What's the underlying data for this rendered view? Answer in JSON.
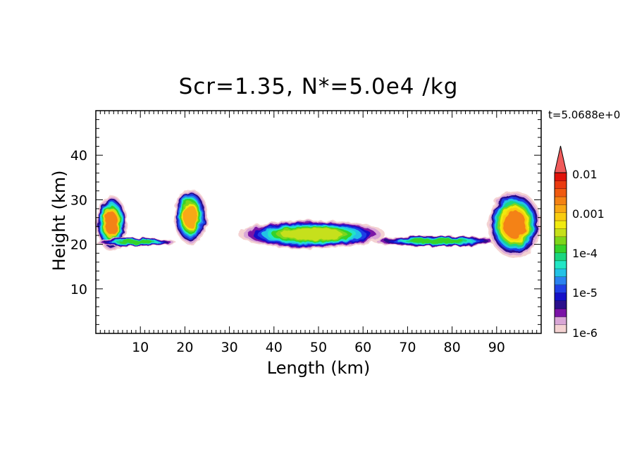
{
  "chart_data": {
    "type": "heatmap",
    "title": "Scr=1.35, N*=5.0e4 /kg",
    "annotation": "t=5.0688e+0",
    "xlabel": "Length  (km)",
    "ylabel": "Height  (km)",
    "xlim": [
      0,
      100
    ],
    "ylim": [
      0,
      50
    ],
    "x_ticks": [
      10,
      20,
      30,
      40,
      50,
      60,
      70,
      80,
      90
    ],
    "y_ticks": [
      10,
      20,
      30,
      40
    ],
    "colorbar": {
      "scale": "log",
      "range": [
        1e-06,
        0.02
      ],
      "tick_labels": [
        "0.01",
        "0.001",
        "1e-4",
        "1e-5",
        "1e-6"
      ],
      "tick_values": [
        0.01,
        0.001,
        0.0001,
        1e-05,
        1e-06
      ],
      "colors": [
        "#f4d2d2",
        "#d9a6d6",
        "#7a12a6",
        "#2a0f8c",
        "#1510c8",
        "#1f3fe6",
        "#2a82f0",
        "#22c2e6",
        "#22e6c6",
        "#1ad680",
        "#35d22a",
        "#7ed61a",
        "#c6e01a",
        "#f0ea10",
        "#f8cc10",
        "#f8a814",
        "#f48214",
        "#f05a10",
        "#ea3a10",
        "#e0120a"
      ],
      "extend_top_color": "#f05a5a"
    },
    "regions": [
      {
        "x": [
          0,
          7
        ],
        "y": [
          18.5,
          31
        ],
        "peak": 0.003
      },
      {
        "x": [
          0,
          18
        ],
        "y": [
          19.5,
          21.5
        ],
        "peak": 0.0002
      },
      {
        "x": [
          17.5,
          25
        ],
        "y": [
          20,
          32.5
        ],
        "peak": 0.002
      },
      {
        "x": [
          32,
          65
        ],
        "y": [
          19,
          25.5
        ],
        "peak": 0.0006
      },
      {
        "x": [
          62,
          91
        ],
        "y": [
          19.5,
          22
        ],
        "peak": 0.0002
      },
      {
        "x": [
          88,
          100
        ],
        "y": [
          17,
          32
        ],
        "peak": 0.004
      }
    ]
  }
}
